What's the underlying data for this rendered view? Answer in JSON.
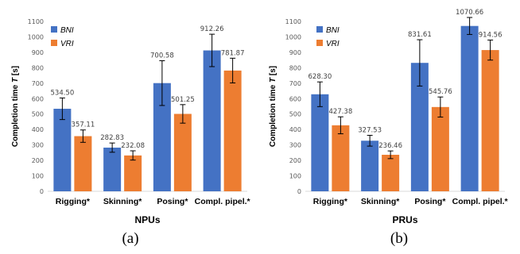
{
  "chart_data": [
    {
      "type": "bar",
      "title": "",
      "xlabel": "NPUs",
      "ylabel_prefix": "Completion time ",
      "ylabel_var": "T",
      "ylabel_suffix": " [s]",
      "ylim": [
        0,
        1100
      ],
      "ytick_step": 100,
      "categories": [
        "Rigging*",
        "Skinning*",
        "Posing*",
        "Compl. pipel.*"
      ],
      "series": [
        {
          "name": "BNI",
          "color": "#4472C4",
          "values": [
            534.5,
            282.83,
            700.58,
            912.26
          ],
          "errors": [
            70,
            30,
            145,
            105
          ]
        },
        {
          "name": "VRI",
          "color": "#ED7D31",
          "values": [
            357.11,
            232.08,
            501.25,
            781.87
          ],
          "errors": [
            40,
            30,
            60,
            80
          ]
        }
      ],
      "value_labels": [
        [
          "534.50",
          "282.83",
          "700.58",
          "912.26"
        ],
        [
          "357.11",
          "232.08",
          "501.25",
          "781.87"
        ]
      ],
      "legend": "top-left",
      "grid": false,
      "caption": "(a)"
    },
    {
      "type": "bar",
      "title": "",
      "xlabel": "PRUs",
      "ylabel_prefix": "Completion time ",
      "ylabel_var": "T",
      "ylabel_suffix": " [s]",
      "ylim": [
        0,
        1100
      ],
      "ytick_step": 100,
      "categories": [
        "Rigging*",
        "Skinning*",
        "Posing*",
        "Compl. pipel.*"
      ],
      "series": [
        {
          "name": "BNI",
          "color": "#4472C4",
          "values": [
            628.3,
            327.53,
            831.61,
            1070.66
          ],
          "errors": [
            80,
            35,
            150,
            55
          ]
        },
        {
          "name": "VRI",
          "color": "#ED7D31",
          "values": [
            427.38,
            236.46,
            545.76,
            914.56
          ],
          "errors": [
            55,
            25,
            65,
            65
          ]
        }
      ],
      "value_labels": [
        [
          "628.30",
          "327.53",
          "831.61",
          "1070.66"
        ],
        [
          "427.38",
          "236.46",
          "545.76",
          "914.56"
        ]
      ],
      "legend": "top-left",
      "grid": false,
      "caption": "(b)"
    }
  ]
}
